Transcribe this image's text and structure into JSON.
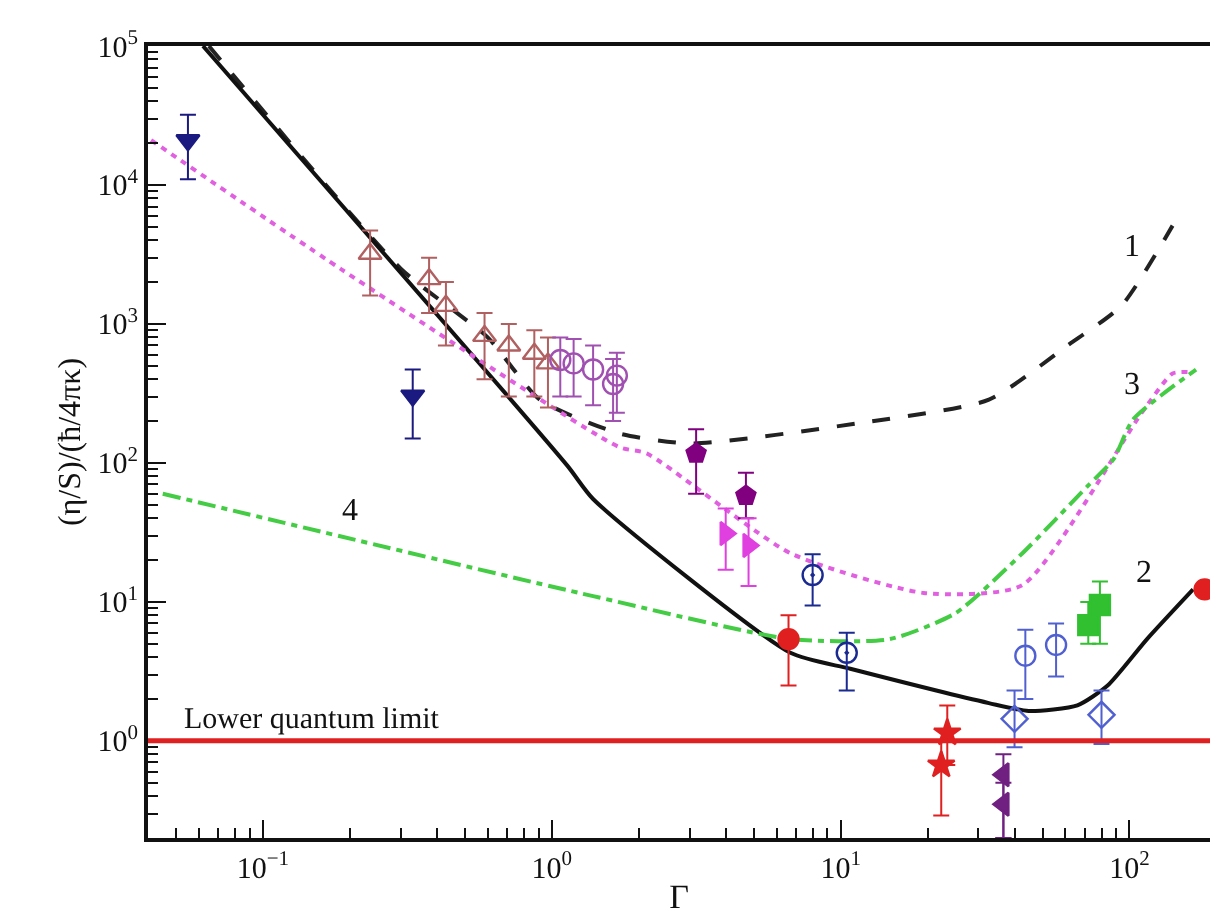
{
  "chart_data": {
    "type": "scatter",
    "xlabel": "Γ",
    "ylabel": "(η/S)/(ħ/4πκ)",
    "log": "xy",
    "xlim": [
      0.04,
      190
    ],
    "ylim": [
      0.2,
      100000
    ],
    "xticks": [
      {
        "value": 0.1,
        "label": "10$^{−1}$"
      },
      {
        "value": 1,
        "label": "10$^{0}$"
      },
      {
        "value": 10,
        "label": "10$^{1}$"
      },
      {
        "value": 100,
        "label": "10$^{2}$"
      }
    ],
    "yticks": [
      {
        "value": 1,
        "label": "10$^{0}$"
      },
      {
        "value": 10,
        "label": "10$^{1}$"
      },
      {
        "value": 100,
        "label": "10$^{2}$"
      },
      {
        "value": 1000,
        "label": "10$^{3}$"
      },
      {
        "value": 10000,
        "label": "10$^{4}$"
      },
      {
        "value": 100000,
        "label": "10$^{5}$"
      }
    ],
    "series": [
      {
        "type": "line",
        "color": "#222222",
        "line_style": "dashed",
        "marker": "none",
        "x": [
          0.065,
          0.3,
          0.6,
          0.91,
          1.71,
          3.06,
          11.3,
          32.6,
          61,
          94,
          141
        ],
        "values": [
          100000,
          2500,
          800,
          285,
          163,
          138,
          192,
          285,
          700,
          1360,
          5100
        ]
      },
      {
        "type": "line",
        "color": "#111111",
        "line_style": "solid",
        "marker": "none",
        "x": [
          0.062,
          1.13,
          1.39,
          6.7,
          10.8,
          32.6,
          44.8,
          66,
          84,
          115,
          166
        ],
        "values": [
          100000,
          96,
          55,
          4.3,
          3.3,
          1.87,
          1.64,
          1.8,
          2.5,
          5.4,
          12.3
        ]
      },
      {
        "type": "line",
        "color": "#e060e0",
        "line_style": "dotted",
        "marker": "none",
        "x": [
          0.041,
          0.188,
          1.71,
          2.13,
          6.7,
          19.4,
          42.6,
          110,
          141,
          160
        ],
        "values": [
          21000,
          2450,
          130,
          117,
          22.4,
          11.6,
          13.2,
          228,
          440,
          450
        ]
      },
      {
        "type": "line",
        "color": "#44cc44",
        "line_style": "dashdot",
        "marker": "none",
        "x": [
          0.045,
          1.39,
          6.7,
          14.8,
          25,
          42.6,
          72,
          88,
          103,
          170
        ],
        "values": [
          60,
          11,
          5.4,
          5.4,
          8.3,
          22.4,
          69,
          106,
          206,
          470
        ]
      },
      {
        "color": "#1a1a80",
        "marker": "triangle-down",
        "x": [
          0.055,
          0.33
        ],
        "values": [
          21000,
          305
        ],
        "errors": [
          [
            11000,
            32000
          ],
          [
            150,
            470
          ]
        ]
      },
      {
        "color": "#b06060",
        "marker": "triangle-up-open",
        "x": [
          0.235,
          0.376,
          0.43,
          0.585,
          0.71,
          0.87,
          0.97
        ],
        "values": [
          3200,
          2100,
          1350,
          820,
          700,
          610,
          520
        ],
        "errors": [
          [
            1600,
            4700
          ],
          [
            1200,
            3000
          ],
          [
            700,
            2000
          ],
          [
            400,
            1200
          ],
          [
            300,
            1000
          ],
          [
            300,
            900
          ],
          [
            250,
            800
          ]
        ]
      },
      {
        "color": "#a050b0",
        "marker": "circle-open",
        "x": [
          1.07,
          1.19,
          1.39,
          1.63,
          1.68
        ],
        "values": [
          550,
          520,
          470,
          370,
          425
        ],
        "errors": [
          [
            300,
            800
          ],
          [
            300,
            780
          ],
          [
            260,
            700
          ],
          [
            200,
            560
          ],
          [
            230,
            620
          ]
        ]
      },
      {
        "color": "#800080",
        "x": [
          3.16,
          4.7
        ],
        "values": [
          117,
          58
        ],
        "errors": [
          [
            60,
            175
          ],
          [
            40,
            85
          ]
        ]
      },
      {
        "color": "#e040e0",
        "marker": "triangle-right",
        "x": [
          4.0,
          4.8
        ],
        "values": [
          31,
          25.5
        ],
        "errors": [
          [
            17,
            47
          ],
          [
            13,
            40
          ]
        ]
      },
      {
        "color": "#1a2a90",
        "marker": "circle-half",
        "x": [
          8.0,
          10.5
        ],
        "values": [
          15.6,
          4.3
        ],
        "errors": [
          [
            9.4,
            22
          ],
          [
            2.3,
            6
          ]
        ]
      },
      {
        "color": "#e02020",
        "marker": "circle",
        "x": [
          6.6,
          182
        ],
        "values": [
          5.4,
          12.3
        ],
        "errors": [
          [
            2.5,
            8
          ],
          null
        ]
      },
      {
        "color": "#e02020",
        "marker": "star",
        "x": [
          23.4,
          22.3
        ],
        "values": [
          1.14,
          0.67
        ],
        "errors": [
          [
            0.67,
            1.8
          ],
          [
            0.29,
            1.0
          ]
        ]
      },
      {
        "color": "#702080",
        "marker": "triangle-left",
        "x": [
          36.6,
          36.6
        ],
        "values": [
          0.57,
          0.35
        ],
        "errors": [
          [
            0.2,
            0.8
          ],
          [
            0.2,
            0.5
          ]
        ]
      },
      {
        "color": "#5060d0",
        "marker": "diamond-open",
        "x": [
          40,
          80
        ],
        "values": [
          1.44,
          1.54
        ],
        "errors": [
          [
            0.9,
            2.3
          ],
          [
            0.95,
            2.3
          ]
        ]
      },
      {
        "color": "#5060d0",
        "marker": "circle-open",
        "x": [
          43.6,
          55.7
        ],
        "values": [
          4.1,
          4.9
        ],
        "errors": [
          [
            2,
            6.3
          ],
          [
            2.9,
            7
          ]
        ]
      },
      {
        "color": "#30c030",
        "marker": "square",
        "x": [
          72,
          79
        ],
        "values": [
          6.8,
          9.5
        ],
        "errors": [
          [
            5,
            10
          ],
          [
            5,
            14
          ]
        ]
      }
    ],
    "ref_lines": [
      {
        "axis": "y",
        "value": 1,
        "label": "Lower quantum limit",
        "color": "#e02020"
      }
    ],
    "annotations": [
      "1",
      "2",
      "3",
      "4"
    ]
  }
}
